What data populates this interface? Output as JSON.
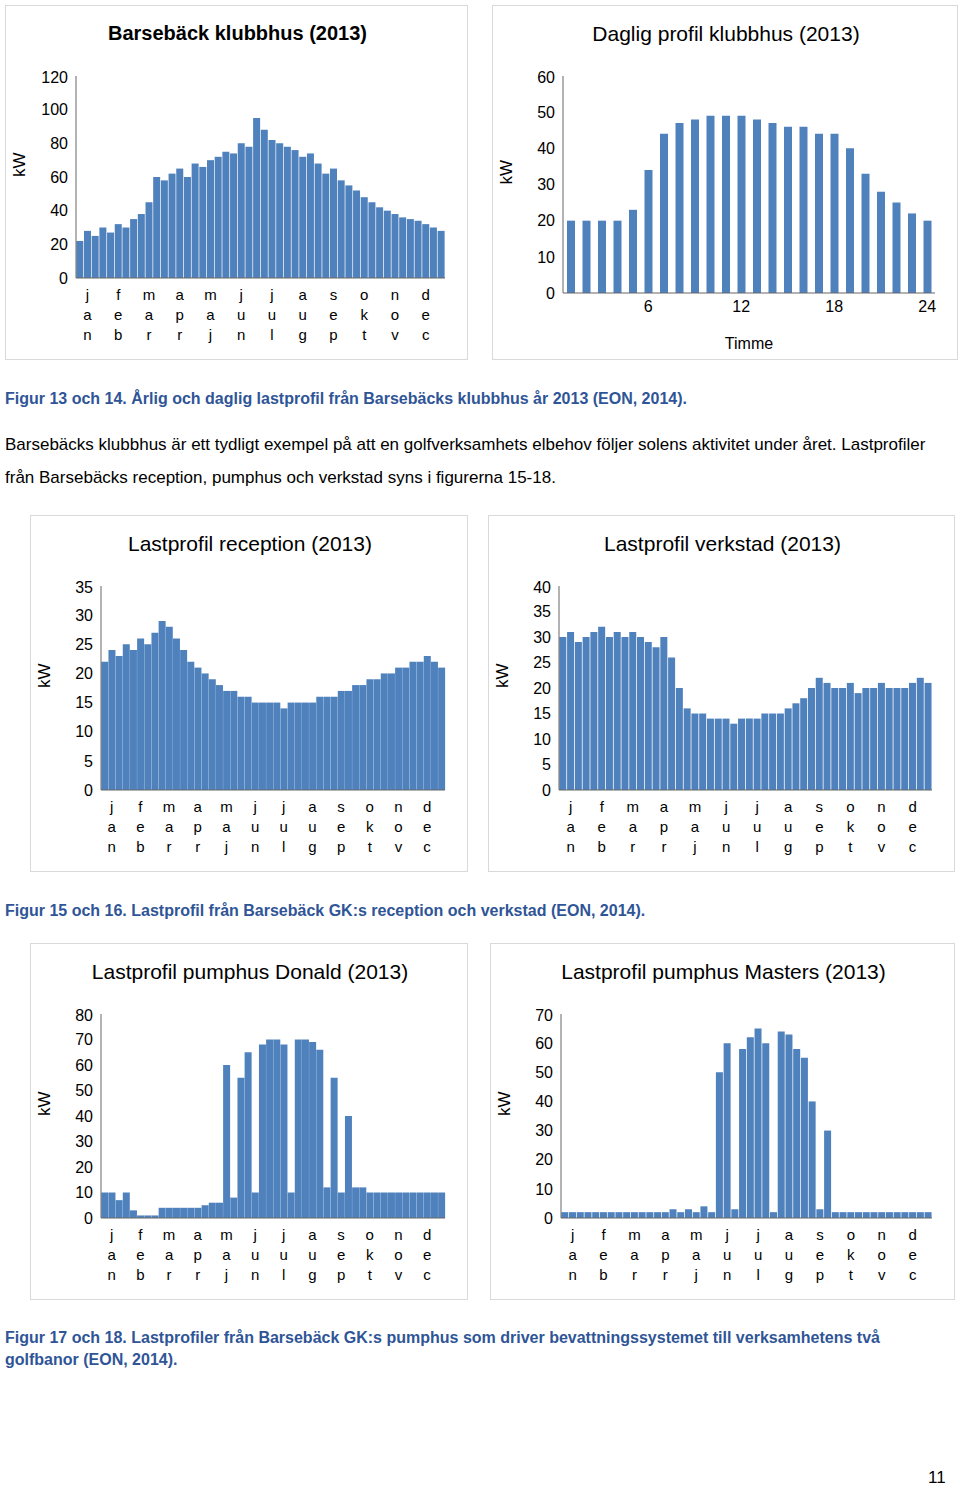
{
  "chart_data": [
    {
      "type": "bar",
      "title": "Barsebäck klubbhus (2013)",
      "ylabel": "kW",
      "color": "#4f81bd",
      "grid": false,
      "categories": [
        null,
        "jan",
        null,
        null,
        null,
        "feb",
        null,
        null,
        null,
        "mar",
        null,
        null,
        null,
        "apr",
        null,
        null,
        null,
        "maj",
        null,
        null,
        null,
        "jun",
        null,
        null,
        null,
        "jul",
        null,
        null,
        null,
        "aug",
        null,
        null,
        null,
        "sep",
        null,
        null,
        null,
        "okt",
        null,
        null,
        null,
        "nov",
        null,
        null,
        null,
        "dec",
        null,
        null
      ],
      "values": [
        22,
        28,
        25,
        30,
        27,
        32,
        30,
        35,
        38,
        45,
        60,
        58,
        62,
        65,
        60,
        68,
        66,
        70,
        72,
        75,
        74,
        80,
        78,
        95,
        88,
        82,
        80,
        78,
        76,
        72,
        74,
        68,
        62,
        65,
        58,
        55,
        52,
        48,
        45,
        42,
        40,
        38,
        36,
        35,
        34,
        32,
        30,
        28
      ],
      "ylim": [
        0,
        120
      ],
      "yticks": [
        0,
        20,
        40,
        60,
        80,
        100,
        120
      ]
    },
    {
      "type": "bar",
      "title": "Daglig profil klubbhus (2013)",
      "ylabel": "kW",
      "xlabel": "Timme",
      "color": "#4f81bd",
      "grid": false,
      "x": [
        1,
        2,
        3,
        4,
        5,
        6,
        7,
        8,
        9,
        10,
        11,
        12,
        13,
        14,
        15,
        16,
        17,
        18,
        19,
        20,
        21,
        22,
        23,
        24
      ],
      "values": [
        20,
        20,
        20,
        20,
        23,
        34,
        44,
        47,
        48,
        49,
        49,
        49,
        48,
        47,
        46,
        46,
        44,
        44,
        40,
        33,
        28,
        25,
        22,
        20
      ],
      "xlim": [
        0.5,
        24.5
      ],
      "xticks": [
        6,
        12,
        18,
        24
      ],
      "ylim": [
        0,
        60
      ],
      "yticks": [
        0,
        10,
        20,
        30,
        40,
        50,
        60
      ]
    },
    {
      "type": "bar",
      "title": "Lastprofil reception (2013)",
      "ylabel": "kW",
      "color": "#4f81bd",
      "grid": false,
      "categories": [
        null,
        "jan",
        null,
        null,
        null,
        "feb",
        null,
        null,
        null,
        "mar",
        null,
        null,
        null,
        "apr",
        null,
        null,
        null,
        "maj",
        null,
        null,
        null,
        "jun",
        null,
        null,
        null,
        "jul",
        null,
        null,
        null,
        "aug",
        null,
        null,
        null,
        "sep",
        null,
        null,
        null,
        "okt",
        null,
        null,
        null,
        "nov",
        null,
        null,
        null,
        "dec",
        null,
        null
      ],
      "values": [
        22,
        24,
        23,
        25,
        24,
        26,
        25,
        27,
        29,
        28,
        26,
        24,
        22,
        21,
        20,
        19,
        18,
        17,
        17,
        16,
        16,
        15,
        15,
        15,
        15,
        14,
        15,
        15,
        15,
        15,
        16,
        16,
        16,
        17,
        17,
        18,
        18,
        19,
        19,
        20,
        20,
        21,
        21,
        22,
        22,
        23,
        22,
        21
      ],
      "ylim": [
        0,
        35
      ],
      "yticks": [
        0,
        5,
        10,
        15,
        20,
        25,
        30,
        35
      ]
    },
    {
      "type": "bar",
      "title": "Lastprofil verkstad (2013)",
      "ylabel": "kW",
      "color": "#4f81bd",
      "grid": false,
      "categories": [
        null,
        "jan",
        null,
        null,
        null,
        "feb",
        null,
        null,
        null,
        "mar",
        null,
        null,
        null,
        "apr",
        null,
        null,
        null,
        "maj",
        null,
        null,
        null,
        "jun",
        null,
        null,
        null,
        "jul",
        null,
        null,
        null,
        "aug",
        null,
        null,
        null,
        "sep",
        null,
        null,
        null,
        "okt",
        null,
        null,
        null,
        "nov",
        null,
        null,
        null,
        "dec",
        null,
        null
      ],
      "values": [
        30,
        31,
        29,
        30,
        31,
        32,
        30,
        31,
        30,
        31,
        30,
        29,
        28,
        30,
        26,
        20,
        16,
        15,
        15,
        14,
        14,
        14,
        13,
        14,
        14,
        14,
        15,
        15,
        15,
        16,
        17,
        18,
        20,
        22,
        21,
        20,
        20,
        21,
        19,
        20,
        20,
        21,
        20,
        20,
        20,
        21,
        22,
        21
      ],
      "ylim": [
        0,
        40
      ],
      "yticks": [
        0,
        5,
        10,
        15,
        20,
        25,
        30,
        35,
        40
      ]
    },
    {
      "type": "bar",
      "title": "Lastprofil pumphus Donald (2013)",
      "ylabel": "kW",
      "color": "#4f81bd",
      "grid": false,
      "categories": [
        null,
        "jan",
        null,
        null,
        null,
        "feb",
        null,
        null,
        null,
        "mar",
        null,
        null,
        null,
        "apr",
        null,
        null,
        null,
        "maj",
        null,
        null,
        null,
        "jun",
        null,
        null,
        null,
        "jul",
        null,
        null,
        null,
        "aug",
        null,
        null,
        null,
        "sep",
        null,
        null,
        null,
        "okt",
        null,
        null,
        null,
        "nov",
        null,
        null,
        null,
        "dec",
        null,
        null
      ],
      "values": [
        10,
        10,
        7,
        10,
        3,
        1,
        1,
        1,
        4,
        4,
        4,
        4,
        4,
        4,
        5,
        6,
        6,
        60,
        8,
        55,
        65,
        10,
        68,
        70,
        70,
        68,
        10,
        70,
        70,
        69,
        66,
        12,
        55,
        10,
        40,
        12,
        12,
        10,
        10,
        10,
        10,
        10,
        10,
        10,
        10,
        10,
        10,
        10
      ],
      "ylim": [
        0,
        80
      ],
      "yticks": [
        0,
        10,
        20,
        30,
        40,
        50,
        60,
        70,
        80
      ]
    },
    {
      "type": "bar",
      "title": "Lastprofil pumphus Masters (2013)",
      "ylabel": "kW",
      "color": "#4f81bd",
      "grid": false,
      "categories": [
        null,
        "jan",
        null,
        null,
        null,
        "feb",
        null,
        null,
        null,
        "mar",
        null,
        null,
        null,
        "apr",
        null,
        null,
        null,
        "maj",
        null,
        null,
        null,
        "jun",
        null,
        null,
        null,
        "jul",
        null,
        null,
        null,
        "aug",
        null,
        null,
        null,
        "sep",
        null,
        null,
        null,
        "okt",
        null,
        null,
        null,
        "nov",
        null,
        null,
        null,
        "dec",
        null,
        null
      ],
      "values": [
        2,
        2,
        2,
        2,
        2,
        2,
        2,
        2,
        2,
        2,
        2,
        2,
        2,
        2,
        3,
        2,
        3,
        2,
        4,
        2,
        50,
        60,
        3,
        58,
        62,
        65,
        60,
        2,
        64,
        63,
        58,
        55,
        40,
        3,
        30,
        2,
        2,
        2,
        2,
        2,
        2,
        2,
        2,
        2,
        2,
        2,
        2,
        2
      ],
      "ylim": [
        0,
        70
      ],
      "yticks": [
        0,
        10,
        20,
        30,
        40,
        50,
        60,
        70
      ]
    }
  ],
  "captions": [
    "Figur 13 och 14. Årlig och daglig lastprofil från Barsebäcks klubbhus år 2013 (EON, 2014).",
    "Figur 15 och 16. Lastprofil från Barsebäck GK:s reception och verkstad (EON, 2014).",
    "Figur 17 och 18. Lastprofiler från Barsebäck GK:s pumphus som driver bevattningssystemet till verksamhetens två golfbanor (EON, 2014)."
  ],
  "paragraph": "Barsebäcks klubbhus är ett tydligt exempel på att en golfverksamhets elbehov följer solens aktivitet under året. Lastprofiler från Barsebäcks reception, pumphus och verkstad syns i figurerna 15-18.",
  "page_number": "11"
}
